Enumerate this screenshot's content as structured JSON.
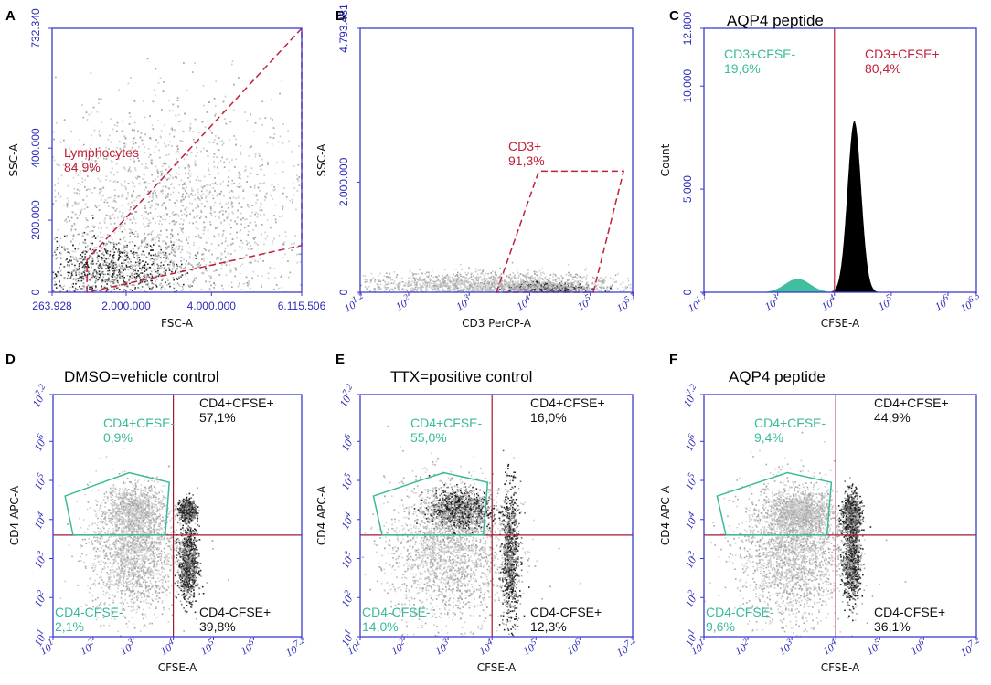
{
  "colors": {
    "axis": "#3b3bd0",
    "gate_red": "#c0203a",
    "gate_teal": "#3aba9a",
    "quad_black": "#111111",
    "density_light": "#cfcfcf",
    "density_dark": "#202020",
    "histogram_teal": "#3fbf9f",
    "histogram_black": "#000000"
  },
  "chart_data": [
    {
      "panel": "A",
      "type": "scatter",
      "title": "",
      "xlabel": "FSC-A",
      "ylabel": "SSC-A",
      "x_scale": "linear",
      "y_scale": "linear",
      "xlim": [
        263928,
        6115506
      ],
      "ylim": [
        0,
        732340
      ],
      "x_ticks": [
        {
          "value": 263928,
          "label": "263.928"
        },
        {
          "value": 2000000,
          "label": "2.000.000"
        },
        {
          "value": 4000000,
          "label": "4.000.000"
        },
        {
          "value": 6115506,
          "label": "6.115.506"
        }
      ],
      "y_ticks": [
        {
          "value": 0,
          "label": "0"
        },
        {
          "value": 200000,
          "label": "200.000"
        },
        {
          "value": 400000,
          "label": "400.000"
        },
        {
          "value": 732340,
          "label": "732.340"
        }
      ],
      "density_clusters": [
        {
          "x": 1600000,
          "y": 60000,
          "sx": 900000,
          "sy": 45000,
          "weight": 1.0,
          "dark": true
        },
        {
          "x": 3000000,
          "y": 200000,
          "sx": 1800000,
          "sy": 160000,
          "weight": 2.4,
          "dark": false
        }
      ],
      "gates": [
        {
          "name": "Lymphocytes",
          "percent": "84,9%",
          "color": "red",
          "polygon": [
            [
              1080000,
              0
            ],
            [
              1080000,
              90000
            ],
            [
              6115506,
              732340
            ],
            [
              6115506,
              130000
            ],
            [
              1080000,
              0
            ]
          ]
        }
      ]
    },
    {
      "panel": "B",
      "type": "scatter",
      "title": "",
      "xlabel": "CD3 PerCP-A",
      "ylabel": "SSC-A",
      "x_scale": "log",
      "y_scale": "linear",
      "xlim": [
        1.2,
        5.7
      ],
      "ylim": [
        0,
        4793481
      ],
      "x_ticks": [
        {
          "value": 1.2,
          "label": "10^1.2"
        },
        {
          "value": 2,
          "label": "10^2"
        },
        {
          "value": 3,
          "label": "10^3"
        },
        {
          "value": 4,
          "label": "10^4"
        },
        {
          "value": 5,
          "label": "10^5"
        },
        {
          "value": 5.7,
          "label": "10^5.7"
        }
      ],
      "y_ticks": [
        {
          "value": 0,
          "label": "0"
        },
        {
          "value": 2000000,
          "label": "2.000.000"
        },
        {
          "value": 4793481,
          "label": "4.793.481"
        }
      ],
      "density_clusters": [
        {
          "x": 4.25,
          "y": 80000,
          "sx": 0.3,
          "sy": 50000,
          "weight": 1.0,
          "dark": true
        },
        {
          "x": 3.3,
          "y": 120000,
          "sx": 1.1,
          "sy": 120000,
          "weight": 1.4,
          "dark": false
        }
      ],
      "gates": [
        {
          "name": "CD3+",
          "percent": "91,3%",
          "color": "red",
          "polygon": [
            [
              3.45,
              0
            ],
            [
              4.15,
              2200000
            ],
            [
              5.55,
              2200000
            ],
            [
              5.05,
              0
            ],
            [
              3.45,
              0
            ]
          ]
        }
      ]
    },
    {
      "panel": "C",
      "type": "histogram",
      "title": "AQP4 peptide",
      "xlabel": "CFSE-A",
      "ylabel": "Count",
      "x_scale": "log",
      "y_scale": "linear",
      "xlim": [
        1.7,
        6.5
      ],
      "ylim": [
        0,
        12800
      ],
      "x_ticks": [
        {
          "value": 1.7,
          "label": "10^1.7"
        },
        {
          "value": 3,
          "label": "10^3"
        },
        {
          "value": 4,
          "label": "10^4"
        },
        {
          "value": 5,
          "label": "10^5"
        },
        {
          "value": 6,
          "label": "10^6"
        },
        {
          "value": 6.5,
          "label": "10^6.5"
        }
      ],
      "y_ticks": [
        {
          "value": 0,
          "label": "0"
        },
        {
          "value": 5000,
          "label": "5.000"
        },
        {
          "value": 10000,
          "label": "10.000"
        },
        {
          "value": 12800,
          "label": "12.800"
        }
      ],
      "divider_x": 4.0,
      "series": [
        {
          "name": "CD3+CFSE-",
          "color": "teal",
          "peak_x": 3.35,
          "peak_count": 650,
          "width": 0.22
        },
        {
          "name": "CD3+CFSE+",
          "color": "black",
          "peak_x": 4.35,
          "peak_count": 8300,
          "width": 0.12
        }
      ],
      "gates": [
        {
          "name": "CD3+CFSE-",
          "percent": "19,6%",
          "color": "teal",
          "position": "top-left"
        },
        {
          "name": "CD3+CFSE+",
          "percent": "80,4%",
          "color": "red",
          "position": "top-right"
        }
      ]
    },
    {
      "panel": "D",
      "type": "scatter",
      "title": "DMSO=vehicle control",
      "xlabel": "CFSE-A",
      "ylabel": "CD4 APC-A",
      "x_scale": "log",
      "y_scale": "log",
      "xlim": [
        1,
        7.2
      ],
      "ylim": [
        1,
        7.2
      ],
      "quadrant": [
        4.0,
        3.6
      ],
      "x_ticks": [
        {
          "value": 1,
          "label": "10^1"
        },
        {
          "value": 2,
          "label": "10^2"
        },
        {
          "value": 3,
          "label": "10^3"
        },
        {
          "value": 4,
          "label": "10^4"
        },
        {
          "value": 5,
          "label": "10^5"
        },
        {
          "value": 6,
          "label": "10^6"
        },
        {
          "value": 7.2,
          "label": "10^7.2"
        }
      ],
      "y_ticks": [
        {
          "value": 1,
          "label": "10^1"
        },
        {
          "value": 2,
          "label": "10^2"
        },
        {
          "value": 3,
          "label": "10^3"
        },
        {
          "value": 4,
          "label": "10^4"
        },
        {
          "value": 5,
          "label": "10^5"
        },
        {
          "value": 6,
          "label": "10^6"
        },
        {
          "value": 7.2,
          "label": "10^7.2"
        }
      ],
      "density_clusters": [
        {
          "x": 4.35,
          "y": 4.25,
          "sx": 0.1,
          "sy": 0.12,
          "weight": 0.8,
          "dark": true
        },
        {
          "x": 4.35,
          "y": 2.9,
          "sx": 0.12,
          "sy": 0.45,
          "weight": 1.0,
          "dark": true
        },
        {
          "x": 3.0,
          "y": 3.2,
          "sx": 0.55,
          "sy": 0.8,
          "weight": 1.2,
          "dark": false
        },
        {
          "x": 3.0,
          "y": 4.3,
          "sx": 0.4,
          "sy": 0.3,
          "weight": 0.4,
          "dark": false
        }
      ],
      "gates": [
        {
          "name": "CD4+CFSE-",
          "percent": "0,9%",
          "color": "teal",
          "position": "top-left",
          "polygon": [
            [
              1.5,
              3.6
            ],
            [
              1.3,
              4.6
            ],
            [
              2.9,
              5.2
            ],
            [
              3.9,
              4.95
            ],
            [
              3.8,
              3.6
            ],
            [
              1.5,
              3.6
            ]
          ]
        },
        {
          "name": "CD4+CFSE+",
          "percent": "57,1%",
          "color": "black",
          "position": "top-right"
        },
        {
          "name": "CD4-CFSE-",
          "percent": "2,1%",
          "color": "teal",
          "position": "bottom-left"
        },
        {
          "name": "CD4-CFSE+",
          "percent": "39,8%",
          "color": "black",
          "position": "bottom-right"
        }
      ]
    },
    {
      "panel": "E",
      "type": "scatter",
      "title": "TTX=positive control",
      "xlabel": "CFSE-A",
      "ylabel": "CD4 APC-A",
      "x_scale": "log",
      "y_scale": "log",
      "xlim": [
        1,
        7.2
      ],
      "ylim": [
        1,
        7.2
      ],
      "quadrant": [
        4.0,
        3.6
      ],
      "x_ticks": [
        {
          "value": 1,
          "label": "10^1"
        },
        {
          "value": 2,
          "label": "10^2"
        },
        {
          "value": 3,
          "label": "10^3"
        },
        {
          "value": 4,
          "label": "10^4"
        },
        {
          "value": 5,
          "label": "10^5"
        },
        {
          "value": 6,
          "label": "10^6"
        },
        {
          "value": 7.2,
          "label": "10^7.2"
        }
      ],
      "y_ticks": [
        {
          "value": 1,
          "label": "10^1"
        },
        {
          "value": 2,
          "label": "10^2"
        },
        {
          "value": 3,
          "label": "10^3"
        },
        {
          "value": 4,
          "label": "10^4"
        },
        {
          "value": 5,
          "label": "10^5"
        },
        {
          "value": 6,
          "label": "10^6"
        },
        {
          "value": 7.2,
          "label": "10^7.2"
        }
      ],
      "density_clusters": [
        {
          "x": 3.25,
          "y": 4.25,
          "sx": 0.35,
          "sy": 0.25,
          "weight": 1.3,
          "dark": true
        },
        {
          "x": 4.4,
          "y": 3.1,
          "sx": 0.1,
          "sy": 0.9,
          "weight": 1.0,
          "dark": true
        },
        {
          "x": 3.0,
          "y": 3.2,
          "sx": 0.7,
          "sy": 0.9,
          "weight": 1.5,
          "dark": false
        }
      ],
      "gates": [
        {
          "name": "CD4+CFSE-",
          "percent": "55,0%",
          "color": "teal",
          "position": "top-left",
          "polygon": [
            [
              1.5,
              3.6
            ],
            [
              1.3,
              4.6
            ],
            [
              2.9,
              5.2
            ],
            [
              3.9,
              4.95
            ],
            [
              3.8,
              3.6
            ],
            [
              1.5,
              3.6
            ]
          ]
        },
        {
          "name": "CD4+CFSE+",
          "percent": "16,0%",
          "color": "black",
          "position": "top-right"
        },
        {
          "name": "CD4-CFSE-",
          "percent": "14,0%",
          "color": "teal",
          "position": "bottom-left"
        },
        {
          "name": "CD4-CFSE+",
          "percent": "12,3%",
          "color": "black",
          "position": "bottom-right"
        }
      ]
    },
    {
      "panel": "F",
      "type": "scatter",
      "title": "AQP4 peptide",
      "xlabel": "CFSE-A",
      "ylabel": "CD4 APC-A",
      "x_scale": "log",
      "y_scale": "log",
      "xlim": [
        1,
        7.2
      ],
      "ylim": [
        1,
        7.2
      ],
      "quadrant": [
        4.0,
        3.6
      ],
      "x_ticks": [
        {
          "value": 1,
          "label": "10^1"
        },
        {
          "value": 2,
          "label": "10^2"
        },
        {
          "value": 3,
          "label": "10^3"
        },
        {
          "value": 4,
          "label": "10^4"
        },
        {
          "value": 5,
          "label": "10^5"
        },
        {
          "value": 6,
          "label": "10^6"
        },
        {
          "value": 7.2,
          "label": "10^7.2"
        }
      ],
      "y_ticks": [
        {
          "value": 1,
          "label": "10^1"
        },
        {
          "value": 2,
          "label": "10^2"
        },
        {
          "value": 3,
          "label": "10^3"
        },
        {
          "value": 4,
          "label": "10^4"
        },
        {
          "value": 5,
          "label": "10^5"
        },
        {
          "value": 6,
          "label": "10^6"
        },
        {
          "value": 7.2,
          "label": "10^7.2"
        }
      ],
      "density_clusters": [
        {
          "x": 4.35,
          "y": 4.1,
          "sx": 0.1,
          "sy": 0.3,
          "weight": 0.9,
          "dark": true
        },
        {
          "x": 4.35,
          "y": 2.9,
          "sx": 0.1,
          "sy": 0.5,
          "weight": 0.9,
          "dark": true
        },
        {
          "x": 3.2,
          "y": 4.2,
          "sx": 0.35,
          "sy": 0.25,
          "weight": 0.6,
          "dark": false
        },
        {
          "x": 3.0,
          "y": 3.2,
          "sx": 0.6,
          "sy": 0.85,
          "weight": 1.3,
          "dark": false
        }
      ],
      "gates": [
        {
          "name": "CD4+CFSE-",
          "percent": "9,4%",
          "color": "teal",
          "position": "top-left",
          "polygon": [
            [
              1.5,
              3.6
            ],
            [
              1.3,
              4.6
            ],
            [
              2.9,
              5.2
            ],
            [
              3.9,
              4.95
            ],
            [
              3.8,
              3.6
            ],
            [
              1.5,
              3.6
            ]
          ]
        },
        {
          "name": "CD4+CFSE+",
          "percent": "44,9%",
          "color": "black",
          "position": "top-right"
        },
        {
          "name": "CD4-CFSE-",
          "percent": "9,6%",
          "color": "teal",
          "position": "bottom-left"
        },
        {
          "name": "CD4-CFSE+",
          "percent": "36,1%",
          "color": "black",
          "position": "bottom-right"
        }
      ]
    }
  ]
}
